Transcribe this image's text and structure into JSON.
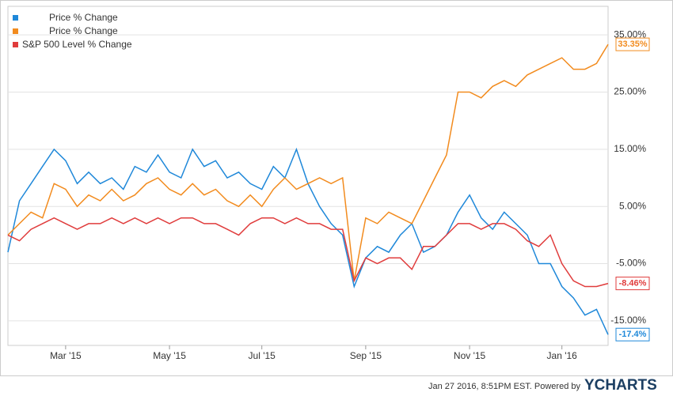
{
  "chart_data": {
    "type": "line",
    "categories": [
      null,
      null,
      null,
      null,
      null,
      "Mar '15",
      null,
      null,
      null,
      null,
      null,
      null,
      null,
      null,
      "May '15",
      null,
      null,
      null,
      null,
      null,
      null,
      null,
      "Jul '15",
      null,
      null,
      null,
      null,
      null,
      null,
      null,
      null,
      "Sep '15",
      null,
      null,
      null,
      null,
      null,
      null,
      null,
      null,
      "Nov '15",
      null,
      null,
      null,
      null,
      null,
      null,
      null,
      "Jan '16",
      null,
      null,
      null,
      null
    ],
    "series": [
      {
        "name": "Price % Change",
        "color": "#1f88d9",
        "values": [
          -3,
          6,
          9,
          12,
          15,
          13,
          9,
          11,
          9,
          10,
          8,
          12,
          11,
          14,
          11,
          10,
          15,
          12,
          13,
          10,
          11,
          9,
          8,
          12,
          10,
          15,
          9,
          5,
          2,
          0,
          -9,
          -4,
          -2,
          -3,
          0,
          2,
          -3,
          -2,
          0,
          4,
          7,
          3,
          1,
          4,
          2,
          0,
          -5,
          -5,
          -9,
          -11,
          -14,
          -13,
          -17.4
        ],
        "value_labels": [
          null,
          null,
          null,
          null,
          null,
          null,
          null,
          null,
          null,
          null,
          null,
          null,
          null,
          null,
          null,
          null,
          null,
          null,
          null,
          null,
          null,
          null,
          null,
          null,
          null,
          null,
          null,
          null,
          null,
          null,
          null,
          null,
          null,
          null,
          null,
          null,
          null,
          null,
          null,
          null,
          null,
          null,
          null,
          null,
          null,
          null,
          null,
          null,
          null,
          null,
          null,
          null,
          "-17.4%"
        ]
      },
      {
        "name": "Price % Change",
        "color": "#f28b1e",
        "values": [
          0,
          2,
          4,
          3,
          9,
          8,
          5,
          7,
          6,
          8,
          6,
          7,
          9,
          10,
          8,
          7,
          9,
          7,
          8,
          6,
          5,
          7,
          5,
          8,
          10,
          8,
          9,
          10,
          9,
          10,
          -8,
          3,
          2,
          4,
          3,
          2,
          6,
          10,
          14,
          25,
          25,
          24,
          26,
          27,
          26,
          28,
          29,
          30,
          31,
          29,
          29,
          30,
          33.35
        ],
        "value_labels": [
          null,
          null,
          null,
          null,
          null,
          null,
          null,
          null,
          null,
          null,
          null,
          null,
          null,
          null,
          null,
          null,
          null,
          null,
          null,
          null,
          null,
          null,
          null,
          null,
          null,
          null,
          null,
          null,
          null,
          null,
          null,
          null,
          null,
          null,
          null,
          null,
          null,
          null,
          null,
          null,
          null,
          null,
          null,
          null,
          null,
          null,
          null,
          null,
          null,
          null,
          null,
          null,
          "33.35%"
        ]
      },
      {
        "name": "S&P 500 Level % Change",
        "color": "#e03c3c",
        "values": [
          0,
          -1,
          1,
          2,
          3,
          2,
          1,
          2,
          2,
          3,
          2,
          3,
          2,
          3,
          2,
          3,
          3,
          2,
          2,
          1,
          0,
          2,
          3,
          3,
          2,
          3,
          2,
          2,
          1,
          1,
          -8,
          -4,
          -5,
          -4,
          -4,
          -6,
          -2,
          -2,
          0,
          2,
          2,
          1,
          2,
          2,
          1,
          -1,
          -2,
          0,
          -5,
          -8,
          -9,
          -9,
          -8.46
        ],
        "value_labels": [
          null,
          null,
          null,
          null,
          null,
          null,
          null,
          null,
          null,
          null,
          null,
          null,
          null,
          null,
          null,
          null,
          null,
          null,
          null,
          null,
          null,
          null,
          null,
          null,
          null,
          null,
          null,
          null,
          null,
          null,
          null,
          null,
          null,
          null,
          null,
          null,
          null,
          null,
          null,
          null,
          null,
          null,
          null,
          null,
          null,
          null,
          null,
          null,
          null,
          null,
          null,
          null,
          "-8.46%"
        ]
      }
    ],
    "ylim": [
      -19.3,
      40
    ],
    "yticks": [
      {
        "value": -15,
        "label": "-15.00%"
      },
      {
        "value": -5,
        "label": "-5.00%"
      },
      {
        "value": 5,
        "label": "5.00%"
      },
      {
        "value": 15,
        "label": "15.00%"
      },
      {
        "value": 25,
        "label": "25.00%"
      },
      {
        "value": 35,
        "label": "35.00%"
      }
    ],
    "grid": true,
    "legend": "top-left"
  },
  "footer": {
    "timestamp": "Jan 27 2016, 8:51PM EST.  Powered by",
    "brand": "YCHARTS"
  }
}
